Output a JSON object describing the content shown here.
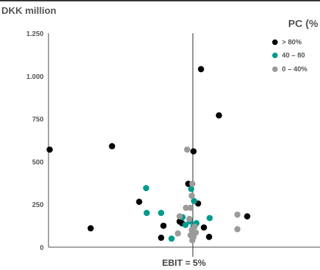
{
  "chart_data": {
    "type": "scatter",
    "ylabel": "DKK million",
    "ylim": [
      0,
      1250
    ],
    "yticks": [
      0,
      250,
      500,
      750,
      1000,
      1250
    ],
    "ytick_labels": [
      "0",
      "250",
      "500",
      "750",
      "1.000",
      "1.250"
    ],
    "xlim": [
      -25,
      22
    ],
    "reference_line": {
      "x": 0,
      "label": "EBIT = 5%"
    },
    "legend_title": "PC (%",
    "legend_position": "top-right",
    "series": [
      {
        "name": "> 80%",
        "color": "#000000",
        "points": [
          {
            "x": -24.8,
            "y": 570
          },
          {
            "x": -17.7,
            "y": 110
          },
          {
            "x": -14.0,
            "y": 590
          },
          {
            "x": -9.3,
            "y": 265
          },
          {
            "x": -5.5,
            "y": 55
          },
          {
            "x": -2.3,
            "y": 150
          },
          {
            "x": -5.1,
            "y": 125
          },
          {
            "x": -0.8,
            "y": 370
          },
          {
            "x": 0.1,
            "y": 560
          },
          {
            "x": 1.4,
            "y": 1040
          },
          {
            "x": 4.5,
            "y": 770
          },
          {
            "x": 0.9,
            "y": 255
          },
          {
            "x": 1.9,
            "y": 115
          },
          {
            "x": 2.8,
            "y": 60
          },
          {
            "x": 9.4,
            "y": 180
          },
          {
            "x": -1.9,
            "y": 140
          }
        ]
      },
      {
        "name": "40 – 80",
        "color": "#009b8d",
        "points": [
          {
            "x": -8.1,
            "y": 345
          },
          {
            "x": -8.0,
            "y": 200
          },
          {
            "x": -5.5,
            "y": 200
          },
          {
            "x": -3.7,
            "y": 50
          },
          {
            "x": -1.8,
            "y": 175
          },
          {
            "x": -1.3,
            "y": 130
          },
          {
            "x": -0.3,
            "y": 340
          },
          {
            "x": 0.2,
            "y": 270
          },
          {
            "x": 2.9,
            "y": 170
          },
          {
            "x": 0.6,
            "y": 140
          },
          {
            "x": 0.1,
            "y": 120
          },
          {
            "x": -0.5,
            "y": 150
          }
        ]
      },
      {
        "name": "0 – 40%",
        "color": "#9b9b9b",
        "points": [
          {
            "x": -1.0,
            "y": 570
          },
          {
            "x": -0.1,
            "y": 370
          },
          {
            "x": -0.2,
            "y": 300
          },
          {
            "x": -0.4,
            "y": 230
          },
          {
            "x": -1.2,
            "y": 230
          },
          {
            "x": -2.3,
            "y": 180
          },
          {
            "x": -2.6,
            "y": 80
          },
          {
            "x": -0.6,
            "y": 165
          },
          {
            "x": 0.3,
            "y": 120
          },
          {
            "x": -0.4,
            "y": 70
          },
          {
            "x": 0.1,
            "y": 60
          },
          {
            "x": -0.2,
            "y": 100
          },
          {
            "x": 0.5,
            "y": 85
          },
          {
            "x": 7.7,
            "y": 190
          },
          {
            "x": 7.7,
            "y": 105
          },
          {
            "x": -0.1,
            "y": 40
          }
        ]
      }
    ]
  }
}
